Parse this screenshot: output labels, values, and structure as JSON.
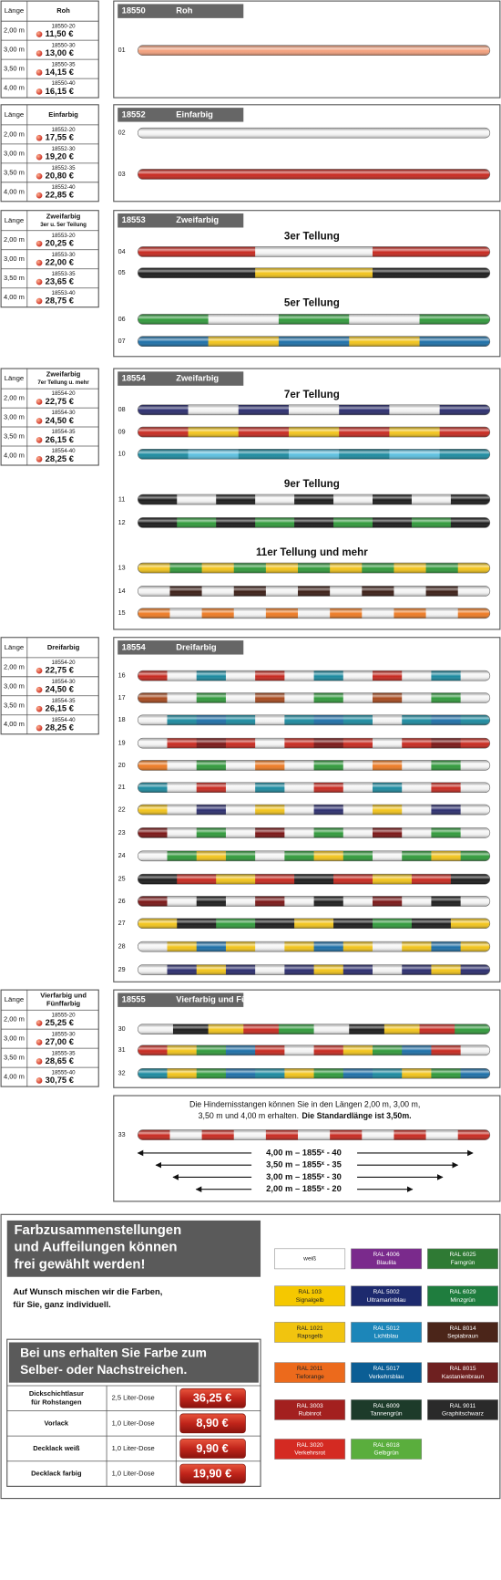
{
  "sections": [
    {
      "code": "18550",
      "title": "Roh",
      "table": {
        "length_header": "Länge",
        "title_lines": [
          "Roh"
        ],
        "rows": [
          {
            "length": "2,00 m",
            "article": "18550-20",
            "price": "11,50 €"
          },
          {
            "length": "3,00 m",
            "article": "18550-30",
            "price": "13,00 €"
          },
          {
            "length": "3,50 m",
            "article": "18550-35",
            "price": "14,15 €"
          },
          {
            "length": "4,00 m",
            "article": "18550-40",
            "price": "16,15 €"
          }
        ]
      },
      "groups": [
        {
          "poles": [
            "01"
          ]
        }
      ]
    },
    {
      "code": "18552",
      "title": "Einfarbig",
      "table": {
        "length_header": "Länge",
        "title_lines": [
          "Einfarbig"
        ],
        "rows": [
          {
            "length": "2,00 m",
            "article": "18552-20",
            "price": "17,55 €"
          },
          {
            "length": "3,00 m",
            "article": "18552-30",
            "price": "19,20 €"
          },
          {
            "length": "3,50 m",
            "article": "18552-35",
            "price": "20,80 €"
          },
          {
            "length": "4,00 m",
            "article": "18552-40",
            "price": "22,85 €"
          }
        ]
      },
      "groups": [
        {
          "poles": [
            "02",
            "03"
          ]
        }
      ]
    },
    {
      "code": "18553",
      "title": "Zweifarbig",
      "table": {
        "length_header": "Länge",
        "title_lines": [
          "Zweifarbig",
          "3er u. 5er Teilung"
        ],
        "rows": [
          {
            "length": "2,00 m",
            "article": "18553-20",
            "price": "20,25 €"
          },
          {
            "length": "3,00 m",
            "article": "18553-30",
            "price": "22,00 €"
          },
          {
            "length": "3,50 m",
            "article": "18553-35",
            "price": "23,65 €"
          },
          {
            "length": "4,00 m",
            "article": "18553-40",
            "price": "28,75 €"
          }
        ]
      },
      "groups": [
        {
          "heading": "3er Tellung",
          "poles": [
            "04",
            "05"
          ]
        },
        {
          "heading": "5er Tellung",
          "poles": [
            "06",
            "07"
          ]
        }
      ]
    },
    {
      "code": "18554",
      "title": "Zweifarbig",
      "table": {
        "length_header": "Länge",
        "title_lines": [
          "Zweifarbig",
          "7er Tellung u. mehr"
        ],
        "rows": [
          {
            "length": "2,00 m",
            "article": "18554-20",
            "price": "22,75 €"
          },
          {
            "length": "3,00 m",
            "article": "18554-30",
            "price": "24,50 €"
          },
          {
            "length": "3,50 m",
            "article": "18554-35",
            "price": "26,15 €"
          },
          {
            "length": "4,00 m",
            "article": "18554-40",
            "price": "28,25 €"
          }
        ]
      },
      "groups": [
        {
          "heading": "7er Tellung",
          "poles": [
            "08",
            "09",
            "10"
          ]
        },
        {
          "heading": "9er Tellung",
          "poles": [
            "11",
            "12"
          ]
        },
        {
          "heading": "11er Tellung und mehr",
          "poles": [
            "13",
            "14",
            "15"
          ]
        }
      ]
    },
    {
      "code": "18554",
      "title": "Dreifarbig",
      "table": {
        "length_header": "Länge",
        "title_lines": [
          "Dreifarbig"
        ],
        "rows": [
          {
            "length": "2,00 m",
            "article": "18554-20",
            "price": "22,75 €"
          },
          {
            "length": "3,00 m",
            "article": "18554-30",
            "price": "24,50 €"
          },
          {
            "length": "3,50 m",
            "article": "18554-35",
            "price": "26,15 €"
          },
          {
            "length": "4,00 m",
            "article": "18554-40",
            "price": "28,25 €"
          }
        ]
      },
      "groups": [
        {
          "poles": [
            "16",
            "17",
            "18",
            "19",
            "20",
            "21",
            "22",
            "23",
            "24",
            "25",
            "26",
            "27",
            "28",
            "29"
          ]
        }
      ]
    },
    {
      "code": "18555",
      "title": "Vierfarbig und Fünffarbig",
      "table": {
        "length_header": "Länge",
        "title_lines": [
          "Vierfarbig und",
          "Fünffarbig"
        ],
        "rows": [
          {
            "length": "2,00 m",
            "article": "18555-20",
            "price": "25,25 €"
          },
          {
            "length": "3,00 m",
            "article": "18555-30",
            "price": "27,00 €"
          },
          {
            "length": "3,50 m",
            "article": "18555-35",
            "price": "28,65 €"
          },
          {
            "length": "4,00 m",
            "article": "18555-40",
            "price": "30,75 €"
          }
        ]
      },
      "groups": [
        {
          "poles": [
            "30",
            "31",
            "32"
          ]
        }
      ]
    }
  ],
  "info": {
    "line1": "Die Hindernisstangen können Sie in den Längen 2,00 m, 3,00 m,",
    "line2": "3,50 m und 4,00 m erhalten.",
    "line2_bold": "Die Standardlänge ist 3,50m.",
    "pole": "33",
    "lengths": [
      "4,00 m – 1855ˣ - 40",
      "3,50 m – 1855ˣ - 35",
      "3,00 m – 1855ˣ - 30",
      "2,00 m – 1855ˣ - 20"
    ]
  },
  "colors": {
    "heading": [
      "Farbzusammenstellungen",
      "und Auffeilungen können",
      "frei gewählt werden!"
    ],
    "text": [
      "Auf Wunsch mischen wir die Farben,",
      "für Sie, ganz individuell."
    ],
    "swatches": [
      {
        "name": "weiß"
      },
      {
        "code": "RAL 4006",
        "name": "Blaulila"
      },
      {
        "code": "RAL 6025",
        "name": "Farngrün"
      },
      {
        "code": "RAL 103",
        "name": "Signalgelb"
      },
      {
        "code": "RAL 5002",
        "name": "Ultramarinblau"
      },
      {
        "code": "RAL 6029",
        "name": "Minzgrün"
      },
      {
        "code": "RAL 1021",
        "name": "Rapsgelb"
      },
      {
        "code": "RAL 5012",
        "name": "Lichtblau"
      },
      {
        "code": "RAL 8014",
        "name": "Sepiabraun"
      },
      {
        "code": "RAL 2011",
        "name": "Tieforange"
      },
      {
        "code": "RAL 5017",
        "name": "Verkehrsblau"
      },
      {
        "code": "RAL 8015",
        "name": "Kastanienbraun"
      },
      {
        "code": "RAL 3003",
        "name": "Rubinrot"
      },
      {
        "code": "RAL 6009",
        "name": "Tannengrün"
      },
      {
        "code": "RAL 9011",
        "name": "Graphitschwarz"
      },
      {
        "code": "RAL 3020",
        "name": "Verkehrsrot"
      },
      {
        "code": "RAL 6018",
        "name": "Gelbgrün"
      }
    ]
  },
  "paint": {
    "heading": [
      "Bei uns erhalten Sie Farbe zum",
      "Selber- oder Nachstreichen."
    ],
    "rows": [
      {
        "product": [
          "Dickschichtlasur",
          "für Rohstangen"
        ],
        "size": "2,5 Liter-Dose",
        "price": "36,25 €"
      },
      {
        "product": [
          "Vorlack"
        ],
        "size": "1,0 Liter-Dose",
        "price": "8,90 €"
      },
      {
        "product": [
          "Decklack weiß"
        ],
        "size": "1,0 Liter-Dose",
        "price": "9,90 €"
      },
      {
        "product": [
          "Decklack farbig"
        ],
        "size": "1,0 Liter-Dose",
        "price": "19,90 €"
      }
    ]
  }
}
